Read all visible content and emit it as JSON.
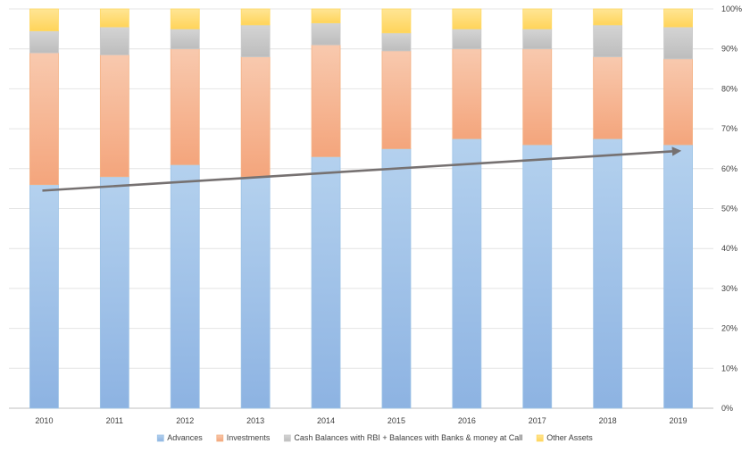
{
  "chart_data": {
    "type": "bar",
    "stacked": true,
    "percent_stacked": true,
    "categories": [
      "2010",
      "2011",
      "2012",
      "2013",
      "2014",
      "2015",
      "2016",
      "2017",
      "2018",
      "2019"
    ],
    "series": [
      {
        "name": "Advances",
        "values": [
          56,
          58,
          61,
          58,
          63,
          65,
          67.5,
          66,
          67.5,
          66
        ],
        "color": "#9dc3e6"
      },
      {
        "name": "Investments",
        "values": [
          33,
          30.5,
          29,
          30,
          28,
          24.5,
          22.5,
          24,
          20.5,
          21.5
        ],
        "color": "#f4b183"
      },
      {
        "name": "Cash Balances with RBI + Balances with Banks & money at Call",
        "values": [
          5.5,
          7,
          5,
          8,
          5.5,
          4.5,
          5,
          5,
          8,
          8
        ],
        "color": "#c9c9c9"
      },
      {
        "name": "Other Assets",
        "values": [
          5.5,
          4.5,
          5,
          4,
          3.5,
          6,
          5,
          5,
          4,
          4.5
        ],
        "color": "#ffd966"
      }
    ],
    "trend_arrow": {
      "from": {
        "category": "2010",
        "value": 54.5
      },
      "to": {
        "category": "2019",
        "value": 64.5
      },
      "color": "#767171"
    },
    "y_ticks": [
      "0%",
      "10%",
      "20%",
      "30%",
      "40%",
      "50%",
      "60%",
      "70%",
      "80%",
      "90%",
      "100%"
    ],
    "ylim": [
      0,
      100
    ],
    "y_axis_side": "right",
    "grid": true,
    "legend_position": "bottom",
    "title": "",
    "xlabel": "",
    "ylabel": ""
  }
}
